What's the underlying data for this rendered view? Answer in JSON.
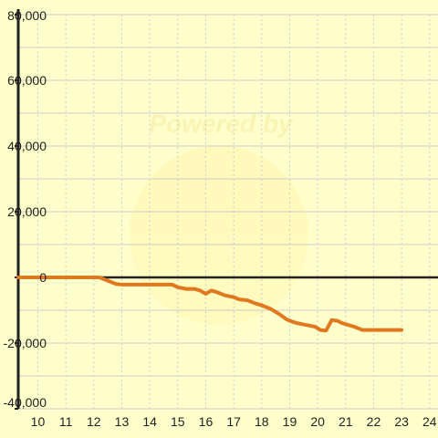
{
  "chart_data": {
    "type": "line",
    "title": "",
    "xlabel": "",
    "ylabel": "",
    "xlim": [
      9.3,
      24.3
    ],
    "ylim": [
      -40000,
      80000
    ],
    "x_ticks": [
      10,
      11,
      12,
      13,
      14,
      15,
      16,
      17,
      18,
      19,
      20,
      21,
      22,
      23,
      24
    ],
    "x_tick_labels": [
      "10",
      "11",
      "12",
      "13",
      "14",
      "15",
      "16",
      "17",
      "18",
      "19",
      "20",
      "21",
      "22",
      "23",
      "24"
    ],
    "y_ticks": [
      -40000,
      -20000,
      0,
      20000,
      40000,
      60000,
      80000
    ],
    "y_tick_labels": [
      "-40,000",
      "-20,000",
      "0",
      "20,000",
      "40,000",
      "60,000",
      "80,000"
    ],
    "grid": true,
    "watermark": "Powered by",
    "colors": {
      "background": "#ffffcc",
      "line": "#e07820",
      "grid_major": "#cccccc",
      "grid_minor": "#cccccc",
      "zero_line": "#222222",
      "axis": "#222222"
    },
    "series": [
      {
        "values_x": [
          9.3,
          10,
          11,
          12,
          12.2,
          12.5,
          12.8,
          13,
          13.5,
          14,
          14.5,
          14.8,
          15,
          15.3,
          15.6,
          15.8,
          16,
          16.2,
          16.4,
          16.7,
          17,
          17.2,
          17.5,
          17.8,
          18,
          18.3,
          18.6,
          18.9,
          19.1,
          19.3,
          19.6,
          19.9,
          20.1,
          20.3,
          20.5,
          20.7,
          20.9,
          21.1,
          21.3,
          21.6,
          21.9,
          22.2,
          22.5,
          22.7,
          23
        ],
        "values_y": [
          0,
          0,
          0,
          0,
          0,
          -1000,
          -2000,
          -2200,
          -2200,
          -2200,
          -2200,
          -2200,
          -3000,
          -3500,
          -3500,
          -4000,
          -5000,
          -4000,
          -4500,
          -5500,
          -6000,
          -6700,
          -7000,
          -8000,
          -8500,
          -9500,
          -11000,
          -12800,
          -13500,
          -14000,
          -14500,
          -15000,
          -16000,
          -16200,
          -13000,
          -13200,
          -14000,
          -14500,
          -15000,
          -16000,
          -16000,
          -16000,
          -16000,
          -16000,
          -16000
        ]
      }
    ]
  }
}
